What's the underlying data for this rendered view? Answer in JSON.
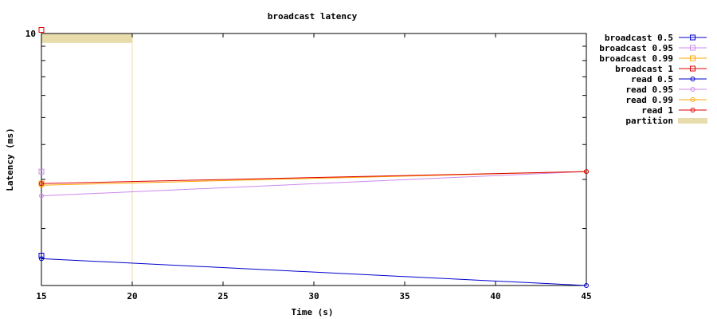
{
  "chart_data": {
    "type": "line",
    "title": "broadcast latency",
    "xlabel": "Time (s)",
    "ylabel": "Latency (ms)",
    "scale_y": "log",
    "xlim": [
      15,
      45
    ],
    "ylim": [
      1.25,
      10
    ],
    "x_ticks": [
      15,
      20,
      25,
      30,
      35,
      40,
      45
    ],
    "y_tick_labels": [
      {
        "value": 10,
        "label": "10"
      }
    ],
    "legend_position": "outside-right",
    "series": [
      {
        "name": "broadcast 0.5",
        "color": "#0000cc",
        "marker": "square",
        "points": [
          [
            15,
            1.6
          ]
        ]
      },
      {
        "name": "broadcast 0.95",
        "color": "#cc88ee",
        "marker": "square",
        "points": [
          [
            15,
            3.2
          ]
        ]
      },
      {
        "name": "broadcast 0.99",
        "color": "#ffa500",
        "marker": "square",
        "points": [
          [
            15,
            2.9
          ]
        ]
      },
      {
        "name": "broadcast 1",
        "color": "#dd0000",
        "marker": "square",
        "points": [
          [
            15,
            10.3
          ]
        ]
      },
      {
        "name": "read 0.5",
        "color": "#0000cc",
        "marker": "circle",
        "points": [
          [
            15,
            1.56
          ],
          [
            45,
            1.25
          ]
        ]
      },
      {
        "name": "read 0.95",
        "color": "#cc88ee",
        "marker": "circle",
        "points": [
          [
            15,
            2.62
          ],
          [
            45,
            3.2
          ]
        ]
      },
      {
        "name": "read 0.99",
        "color": "#ffa500",
        "marker": "circle",
        "points": [
          [
            15,
            2.86
          ],
          [
            45,
            3.2
          ]
        ]
      },
      {
        "name": "read 1",
        "color": "#dd0000",
        "marker": "circle",
        "points": [
          [
            15,
            2.9
          ],
          [
            45,
            3.2
          ]
        ]
      }
    ],
    "partition": {
      "name": "partition",
      "color": "#e8dcac",
      "x_start": 15,
      "x_end": 20,
      "y_from": 9.25,
      "y_to": 10
    }
  }
}
